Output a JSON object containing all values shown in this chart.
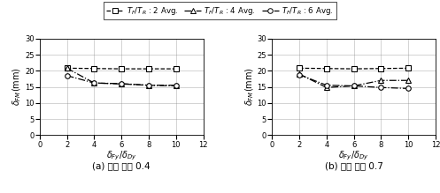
{
  "x": [
    2,
    4,
    6,
    8,
    10
  ],
  "panel_a": {
    "series1": [
      20.8,
      20.7,
      20.6,
      20.6,
      20.6
    ],
    "series2": [
      20.8,
      16.2,
      16.0,
      15.5,
      15.5
    ],
    "series3": [
      18.5,
      16.2,
      15.9,
      15.5,
      15.3
    ]
  },
  "panel_b": {
    "series1": [
      20.8,
      20.7,
      20.6,
      20.7,
      20.8
    ],
    "series2": [
      19.0,
      14.8,
      15.3,
      17.0,
      17.0
    ],
    "series3": [
      18.8,
      15.5,
      15.3,
      14.8,
      14.5
    ]
  },
  "xlim": [
    0,
    12
  ],
  "ylim": [
    0,
    30
  ],
  "yticks": [
    0,
    5,
    10,
    15,
    20,
    25,
    30
  ],
  "xticks": [
    0,
    2,
    4,
    6,
    8,
    10,
    12
  ],
  "xlabel": "$\\delta_{Fy}/\\delta_{Dy}$",
  "ylabel": "$\\delta_{FM}$(mm)",
  "legend_labels": [
    "$T_F/T_R$ : 2 Avg.",
    "$T_F/T_R$ : 4 Avg.",
    "$T_F/T_R$ : 6 Avg."
  ],
  "subtitle_a": "(a) 내력 비율 0.4",
  "subtitle_b": "(b) 내력 비율 0.7",
  "color": "black",
  "line_styles": [
    "--",
    "-.",
    "-."
  ],
  "markers": [
    "s",
    "^",
    "o"
  ],
  "marker_sizes": [
    4,
    5,
    4
  ]
}
